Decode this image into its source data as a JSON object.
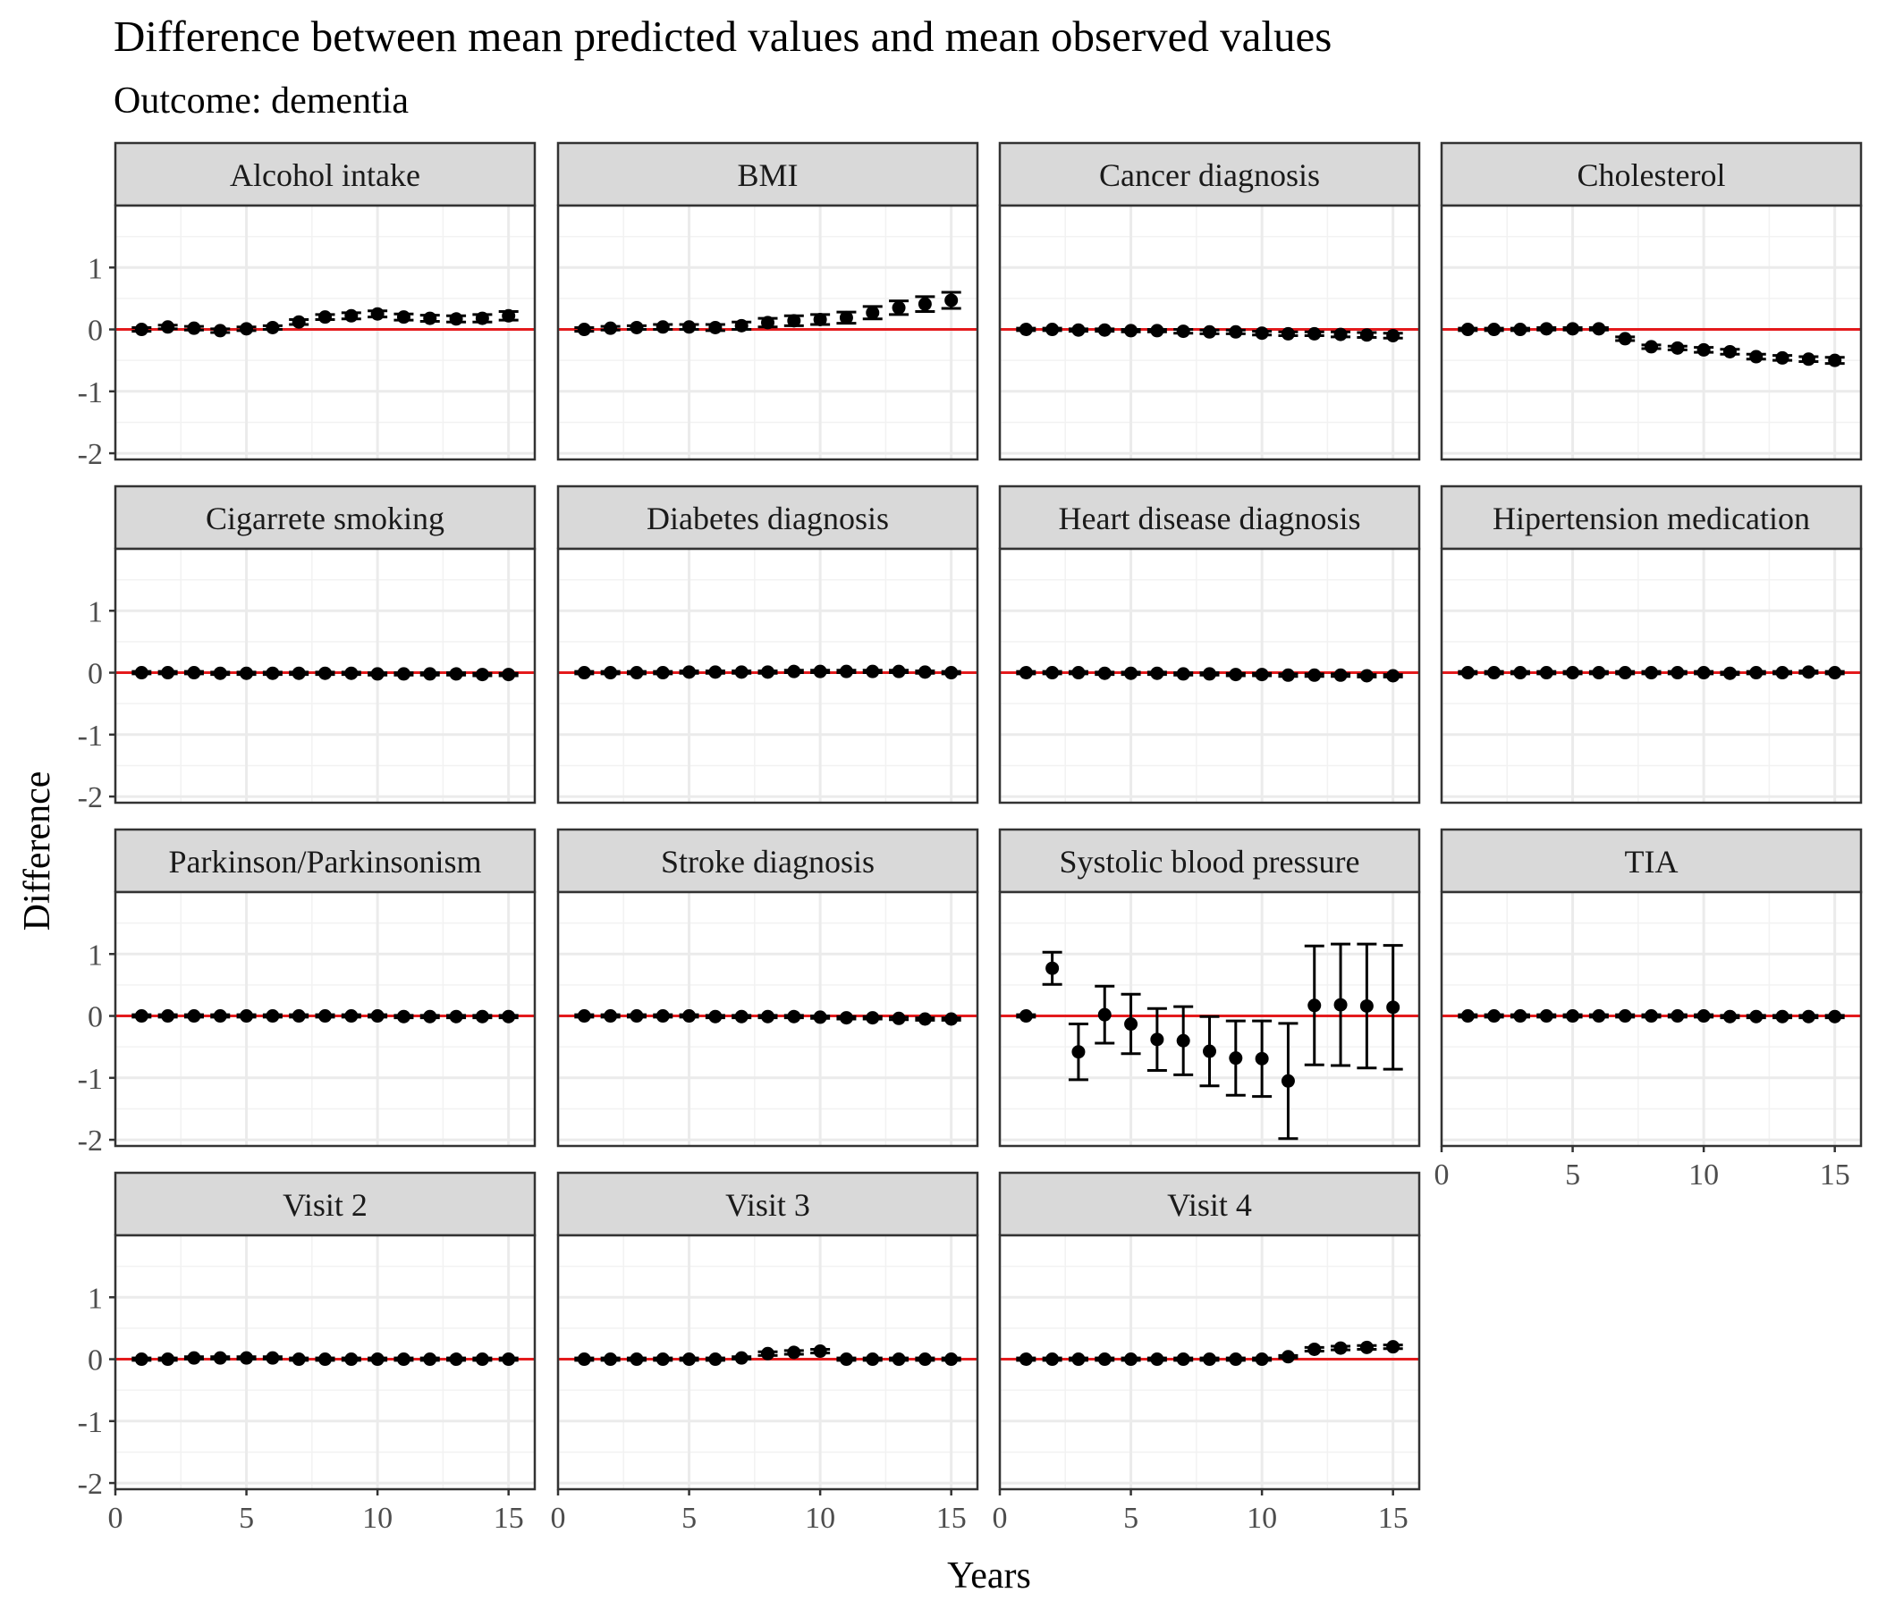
{
  "chart_data": {
    "type": "scatter",
    "title": "Difference between mean predicted values and mean observed values",
    "subtitle": "Outcome: dementia",
    "xlabel": "Years",
    "ylabel": "Difference",
    "xlim": [
      0,
      16
    ],
    "ylim": [
      -2.1,
      2.0
    ],
    "x_ticks": [
      0,
      5,
      10,
      15
    ],
    "y_ticks": [
      1,
      0,
      -1,
      -2
    ],
    "y_tick_labels": [
      "1",
      "0",
      "-1",
      "-2"
    ],
    "grid": true,
    "reference_line": {
      "y": 0,
      "color": "#e41a1c"
    },
    "point_color": "#000000",
    "strip_fill": "#d9d9d9",
    "panels": [
      {
        "name": "Alcohol intake",
        "x": [
          1,
          2,
          3,
          4,
          5,
          6,
          7,
          8,
          9,
          10,
          11,
          12,
          13,
          14,
          15
        ],
        "y": [
          0.0,
          0.04,
          0.02,
          -0.02,
          0.01,
          0.03,
          0.12,
          0.2,
          0.22,
          0.25,
          0.2,
          0.18,
          0.17,
          0.18,
          0.22
        ],
        "err": [
          0.03,
          0.03,
          0.03,
          0.03,
          0.03,
          0.03,
          0.04,
          0.04,
          0.05,
          0.05,
          0.05,
          0.05,
          0.05,
          0.06,
          0.07
        ]
      },
      {
        "name": "BMI",
        "x": [
          1,
          2,
          3,
          4,
          5,
          6,
          7,
          8,
          9,
          10,
          11,
          12,
          13,
          14,
          15
        ],
        "y": [
          0.0,
          0.02,
          0.03,
          0.04,
          0.04,
          0.03,
          0.06,
          0.11,
          0.14,
          0.16,
          0.19,
          0.27,
          0.35,
          0.41,
          0.47
        ],
        "err": [
          0.03,
          0.03,
          0.03,
          0.04,
          0.04,
          0.05,
          0.06,
          0.07,
          0.08,
          0.08,
          0.09,
          0.1,
          0.11,
          0.12,
          0.13
        ]
      },
      {
        "name": "Cancer diagnosis",
        "x": [
          1,
          2,
          3,
          4,
          5,
          6,
          7,
          8,
          9,
          10,
          11,
          12,
          13,
          14,
          15
        ],
        "y": [
          0.0,
          0.0,
          -0.01,
          -0.01,
          -0.02,
          -0.02,
          -0.03,
          -0.04,
          -0.04,
          -0.06,
          -0.07,
          -0.07,
          -0.08,
          -0.09,
          -0.1
        ],
        "err": [
          0.02,
          0.02,
          0.02,
          0.02,
          0.02,
          0.02,
          0.03,
          0.03,
          0.03,
          0.03,
          0.03,
          0.03,
          0.04,
          0.04,
          0.04
        ]
      },
      {
        "name": "Cholesterol",
        "x": [
          1,
          2,
          3,
          4,
          5,
          6,
          7,
          8,
          9,
          10,
          11,
          12,
          13,
          14,
          15
        ],
        "y": [
          0.0,
          0.0,
          0.0,
          0.01,
          0.01,
          0.01,
          -0.15,
          -0.28,
          -0.3,
          -0.33,
          -0.36,
          -0.44,
          -0.46,
          -0.48,
          -0.5
        ],
        "err": [
          0.02,
          0.02,
          0.02,
          0.02,
          0.02,
          0.02,
          0.03,
          0.03,
          0.03,
          0.04,
          0.04,
          0.04,
          0.04,
          0.04,
          0.05
        ]
      },
      {
        "name": "Cigarrete smoking",
        "x": [
          1,
          2,
          3,
          4,
          5,
          6,
          7,
          8,
          9,
          10,
          11,
          12,
          13,
          14,
          15
        ],
        "y": [
          0.0,
          0.0,
          0.0,
          -0.01,
          -0.01,
          -0.01,
          -0.01,
          -0.01,
          -0.01,
          -0.02,
          -0.02,
          -0.02,
          -0.02,
          -0.03,
          -0.03
        ],
        "err": [
          0.02,
          0.02,
          0.02,
          0.02,
          0.02,
          0.02,
          0.02,
          0.02,
          0.02,
          0.02,
          0.02,
          0.02,
          0.02,
          0.02,
          0.02
        ]
      },
      {
        "name": "Diabetes diagnosis",
        "x": [
          1,
          2,
          3,
          4,
          5,
          6,
          7,
          8,
          9,
          10,
          11,
          12,
          13,
          14,
          15
        ],
        "y": [
          0.0,
          0.0,
          0.0,
          0.0,
          0.01,
          0.01,
          0.01,
          0.01,
          0.02,
          0.02,
          0.02,
          0.02,
          0.02,
          0.01,
          0.0
        ],
        "err": [
          0.02,
          0.02,
          0.02,
          0.02,
          0.02,
          0.02,
          0.02,
          0.02,
          0.02,
          0.02,
          0.02,
          0.02,
          0.02,
          0.02,
          0.02
        ]
      },
      {
        "name": "Heart disease diagnosis",
        "x": [
          1,
          2,
          3,
          4,
          5,
          6,
          7,
          8,
          9,
          10,
          11,
          12,
          13,
          14,
          15
        ],
        "y": [
          0.0,
          0.0,
          0.0,
          -0.01,
          -0.01,
          -0.01,
          -0.02,
          -0.02,
          -0.03,
          -0.03,
          -0.04,
          -0.04,
          -0.04,
          -0.05,
          -0.05
        ],
        "err": [
          0.02,
          0.02,
          0.02,
          0.02,
          0.02,
          0.02,
          0.02,
          0.02,
          0.02,
          0.02,
          0.02,
          0.02,
          0.02,
          0.02,
          0.02
        ]
      },
      {
        "name": "Hipertension medication",
        "x": [
          1,
          2,
          3,
          4,
          5,
          6,
          7,
          8,
          9,
          10,
          11,
          12,
          13,
          14,
          15
        ],
        "y": [
          0.0,
          0.0,
          0.0,
          0.0,
          0.0,
          0.0,
          0.0,
          0.0,
          0.0,
          0.0,
          -0.01,
          0.0,
          0.0,
          0.01,
          0.0
        ],
        "err": [
          0.02,
          0.02,
          0.02,
          0.02,
          0.02,
          0.02,
          0.02,
          0.02,
          0.02,
          0.02,
          0.02,
          0.02,
          0.02,
          0.02,
          0.02
        ]
      },
      {
        "name": "Parkinson/Parkinsonism",
        "x": [
          1,
          2,
          3,
          4,
          5,
          6,
          7,
          8,
          9,
          10,
          11,
          12,
          13,
          14,
          15
        ],
        "y": [
          0.0,
          0.0,
          0.0,
          0.0,
          0.0,
          0.0,
          0.0,
          0.0,
          0.0,
          0.0,
          -0.01,
          -0.01,
          -0.01,
          -0.01,
          -0.01
        ],
        "err": [
          0.02,
          0.02,
          0.02,
          0.02,
          0.02,
          0.02,
          0.02,
          0.02,
          0.02,
          0.02,
          0.02,
          0.02,
          0.02,
          0.02,
          0.02
        ]
      },
      {
        "name": "Stroke diagnosis",
        "x": [
          1,
          2,
          3,
          4,
          5,
          6,
          7,
          8,
          9,
          10,
          11,
          12,
          13,
          14,
          15
        ],
        "y": [
          0.0,
          0.0,
          0.0,
          0.0,
          0.0,
          -0.01,
          -0.01,
          -0.01,
          -0.01,
          -0.02,
          -0.03,
          -0.03,
          -0.04,
          -0.05,
          -0.05
        ],
        "err": [
          0.02,
          0.02,
          0.02,
          0.02,
          0.02,
          0.02,
          0.02,
          0.02,
          0.02,
          0.02,
          0.02,
          0.02,
          0.02,
          0.02,
          0.02
        ]
      },
      {
        "name": "Systolic blood pressure",
        "x": [
          1,
          2,
          3,
          4,
          5,
          6,
          7,
          8,
          9,
          10,
          11,
          12,
          13,
          14,
          15
        ],
        "y": [
          0.0,
          0.77,
          -0.58,
          0.02,
          -0.13,
          -0.38,
          -0.4,
          -0.57,
          -0.68,
          -0.69,
          -1.05,
          0.17,
          0.18,
          0.16,
          0.14
        ],
        "err": [
          0.02,
          0.26,
          0.45,
          0.46,
          0.48,
          0.5,
          0.55,
          0.56,
          0.6,
          0.61,
          0.93,
          0.96,
          0.98,
          1.0,
          1.0
        ]
      },
      {
        "name": "TIA",
        "x": [
          1,
          2,
          3,
          4,
          5,
          6,
          7,
          8,
          9,
          10,
          11,
          12,
          13,
          14,
          15
        ],
        "y": [
          0.0,
          0.0,
          0.0,
          0.0,
          0.0,
          0.0,
          0.0,
          0.0,
          0.0,
          0.0,
          -0.01,
          -0.01,
          -0.01,
          -0.01,
          -0.01
        ],
        "err": [
          0.02,
          0.02,
          0.02,
          0.02,
          0.02,
          0.02,
          0.02,
          0.02,
          0.02,
          0.02,
          0.02,
          0.02,
          0.02,
          0.02,
          0.02
        ]
      },
      {
        "name": "Visit 2",
        "x": [
          1,
          2,
          3,
          4,
          5,
          6,
          7,
          8,
          9,
          10,
          11,
          12,
          13,
          14,
          15
        ],
        "y": [
          0.0,
          0.0,
          0.02,
          0.02,
          0.02,
          0.02,
          0.0,
          0.0,
          0.0,
          0.0,
          0.0,
          0.0,
          0.0,
          0.0,
          0.0
        ],
        "err": [
          0.02,
          0.02,
          0.02,
          0.02,
          0.02,
          0.02,
          0.02,
          0.02,
          0.02,
          0.02,
          0.02,
          0.02,
          0.02,
          0.02,
          0.02
        ]
      },
      {
        "name": "Visit 3",
        "x": [
          1,
          2,
          3,
          4,
          5,
          6,
          7,
          8,
          9,
          10,
          11,
          12,
          13,
          14,
          15
        ],
        "y": [
          0.0,
          0.0,
          0.0,
          0.0,
          0.0,
          0.0,
          0.02,
          0.09,
          0.11,
          0.13,
          0.0,
          0.0,
          0.0,
          0.0,
          0.0
        ],
        "err": [
          0.02,
          0.02,
          0.02,
          0.02,
          0.02,
          0.02,
          0.02,
          0.03,
          0.03,
          0.03,
          0.02,
          0.02,
          0.02,
          0.02,
          0.02
        ]
      },
      {
        "name": "Visit 4",
        "x": [
          1,
          2,
          3,
          4,
          5,
          6,
          7,
          8,
          9,
          10,
          11,
          12,
          13,
          14,
          15
        ],
        "y": [
          0.0,
          0.0,
          0.0,
          0.0,
          0.0,
          0.0,
          0.0,
          0.0,
          0.0,
          0.0,
          0.04,
          0.16,
          0.18,
          0.19,
          0.2
        ],
        "err": [
          0.02,
          0.02,
          0.02,
          0.02,
          0.02,
          0.02,
          0.02,
          0.02,
          0.02,
          0.02,
          0.02,
          0.03,
          0.03,
          0.03,
          0.03
        ]
      }
    ]
  }
}
